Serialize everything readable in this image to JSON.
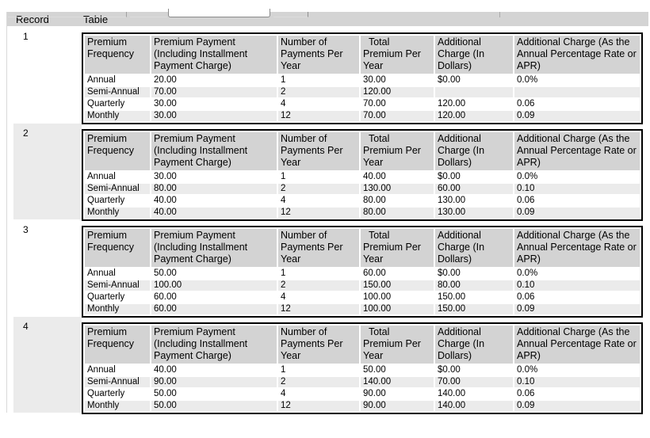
{
  "outer_table": {
    "header": {
      "record": "Record",
      "table": "Table"
    }
  },
  "columns": {
    "premium_frequency": "Premium\nFrequency",
    "premium_payment": "Premium Payment\n(Including Installment\nPayment Charge)",
    "num_payments": "Number of\nPayments Per\nYear",
    "total_premium": "  Total\nPremium Per\nYear",
    "additional_charge_dollars": "Additional\nCharge (In\nDollars)",
    "additional_charge_apr": "Additional Charge (As the\nAnnual Percentage Rate or\nAPR)"
  },
  "records": [
    {
      "id": "1",
      "rows": [
        {
          "frequency": "Annual",
          "payment": "20.00",
          "num_payments": "1",
          "total": "30.00",
          "charge_dollars": "$0.00",
          "charge_apr": "0.0%"
        },
        {
          "frequency": "Semi-Annual",
          "payment": "70.00",
          "num_payments": "2",
          "total": "120.00",
          "charge_dollars": "",
          "charge_apr": ""
        },
        {
          "frequency": "Quarterly",
          "payment": "30.00",
          "num_payments": "4",
          "total": "70.00",
          "charge_dollars": "120.00",
          "charge_apr": "0.06"
        },
        {
          "frequency": "Monthly",
          "payment": "30.00",
          "num_payments": "12",
          "total": "70.00",
          "charge_dollars": "120.00",
          "charge_apr": "0.09"
        }
      ]
    },
    {
      "id": "2",
      "rows": [
        {
          "frequency": "Annual",
          "payment": "30.00",
          "num_payments": "1",
          "total": "40.00",
          "charge_dollars": "$0.00",
          "charge_apr": "0.0%"
        },
        {
          "frequency": "Semi-Annual",
          "payment": "80.00",
          "num_payments": "2",
          "total": "130.00",
          "charge_dollars": "60.00",
          "charge_apr": "0.10"
        },
        {
          "frequency": "Quarterly",
          "payment": "40.00",
          "num_payments": "4",
          "total": "80.00",
          "charge_dollars": "130.00",
          "charge_apr": "0.06"
        },
        {
          "frequency": "Monthly",
          "payment": "40.00",
          "num_payments": "12",
          "total": "80.00",
          "charge_dollars": "130.00",
          "charge_apr": "0.09"
        }
      ]
    },
    {
      "id": "3",
      "rows": [
        {
          "frequency": "Annual",
          "payment": "50.00",
          "num_payments": "1",
          "total": "60.00",
          "charge_dollars": "$0.00",
          "charge_apr": "0.0%"
        },
        {
          "frequency": "Semi-Annual",
          "payment": "100.00",
          "num_payments": "2",
          "total": "150.00",
          "charge_dollars": "80.00",
          "charge_apr": "0.10"
        },
        {
          "frequency": "Quarterly",
          "payment": "60.00",
          "num_payments": "4",
          "total": "100.00",
          "charge_dollars": "150.00",
          "charge_apr": "0.06"
        },
        {
          "frequency": "Monthly",
          "payment": "60.00",
          "num_payments": "12",
          "total": "100.00",
          "charge_dollars": "150.00",
          "charge_apr": "0.09"
        }
      ]
    },
    {
      "id": "4",
      "rows": [
        {
          "frequency": "Annual",
          "payment": "40.00",
          "num_payments": "1",
          "total": "50.00",
          "charge_dollars": "$0.00",
          "charge_apr": "0.0%"
        },
        {
          "frequency": "Semi-Annual",
          "payment": "90.00",
          "num_payments": "2",
          "total": "140.00",
          "charge_dollars": "70.00",
          "charge_apr": "0.10"
        },
        {
          "frequency": "Quarterly",
          "payment": "50.00",
          "num_payments": "4",
          "total": "90.00",
          "charge_dollars": "140.00",
          "charge_apr": "0.06"
        },
        {
          "frequency": "Monthly",
          "payment": "50.00",
          "num_payments": "12",
          "total": "90.00",
          "charge_dollars": "140.00",
          "charge_apr": "0.09"
        }
      ]
    }
  ],
  "colors": {
    "outer_header_bg": "#d4d4d4",
    "column_header_bg": "#d3d3d3",
    "alt_row_bg": "#ebebeb",
    "table_border": "#000000"
  }
}
